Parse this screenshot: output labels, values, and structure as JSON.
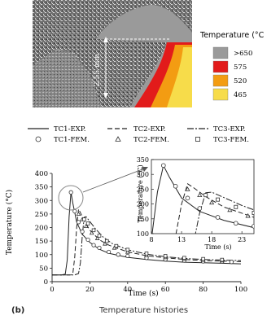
{
  "micrograph": {
    "dimension_label": "2.55 mm",
    "legend_title": "Temperature (°C",
    "legend_items": [
      {
        "label": ">650",
        "color": "#9a9a9a"
      },
      {
        "label": "575",
        "color": "#e21b1b"
      },
      {
        "label": "520",
        "color": "#f39c12"
      },
      {
        "label": "465",
        "color": "#f7dc4a"
      }
    ]
  },
  "chart_data": {
    "type": "line",
    "xlabel": "Time (s)",
    "ylabel": "Temperature (°C)",
    "xlim": [
      0,
      100
    ],
    "ylim": [
      0,
      400
    ],
    "xticks": [
      "0",
      "20",
      "40",
      "60",
      "80",
      "100"
    ],
    "yticks": [
      "0",
      "50",
      "100",
      "150",
      "200",
      "250",
      "300",
      "350",
      "400"
    ],
    "legend": [
      {
        "name": "TC1-EXP.",
        "style": "solid"
      },
      {
        "name": "TC2-EXP.",
        "style": "dashed"
      },
      {
        "name": "TC3-EXP.",
        "style": "dashdot"
      },
      {
        "name": "TC1-FEM.",
        "style": "circle"
      },
      {
        "name": "TC2-FEM.",
        "style": "triangle"
      },
      {
        "name": "TC3-FEM.",
        "style": "square"
      }
    ],
    "series": [
      {
        "name": "TC1-EXP.",
        "dash": "",
        "x": [
          0,
          5,
          7,
          8,
          9,
          10,
          11,
          13,
          16,
          20,
          25,
          30,
          40,
          50,
          60,
          70,
          80,
          90,
          100
        ],
        "y": [
          25,
          25,
          28,
          80,
          240,
          330,
          290,
          220,
          175,
          145,
          120,
          105,
          90,
          82,
          76,
          72,
          70,
          68,
          66
        ]
      },
      {
        "name": "TC2-EXP.",
        "dash": "6,3",
        "x": [
          0,
          10,
          11,
          12,
          13,
          14,
          15,
          17,
          20,
          25,
          30,
          40,
          50,
          60,
          70,
          80,
          90,
          100
        ],
        "y": [
          25,
          25,
          30,
          90,
          200,
          268,
          255,
          225,
          190,
          155,
          135,
          110,
          96,
          88,
          82,
          78,
          76,
          74
        ]
      },
      {
        "name": "TC3-EXP.",
        "dash": "8,2,2,2",
        "x": [
          0,
          12,
          14,
          15,
          16,
          17,
          18,
          20,
          23,
          27,
          32,
          40,
          50,
          60,
          70,
          80,
          90,
          100
        ],
        "y": [
          25,
          25,
          30,
          70,
          170,
          238,
          240,
          222,
          195,
          165,
          140,
          118,
          102,
          92,
          86,
          82,
          80,
          78
        ]
      }
    ],
    "markers": [
      {
        "name": "TC1-FEM.",
        "shape": "circle",
        "x": [
          10,
          12,
          14,
          16,
          19,
          22,
          25,
          30,
          35,
          40,
          50,
          60,
          70,
          80,
          90,
          95
        ],
        "y": [
          330,
          260,
          220,
          185,
          155,
          135,
          125,
          110,
          100,
          95,
          88,
          82,
          78,
          75,
          74,
          73
        ]
      },
      {
        "name": "TC2-FEM.",
        "shape": "triangle",
        "x": [
          14,
          16,
          18,
          21,
          24,
          28,
          33,
          40,
          50,
          60,
          70,
          80,
          90
        ],
        "y": [
          250,
          230,
          205,
          180,
          160,
          140,
          125,
          110,
          98,
          90,
          84,
          80,
          78
        ]
      },
      {
        "name": "TC3-FEM.",
        "shape": "square",
        "x": [
          17,
          19,
          22,
          25,
          29,
          34,
          40,
          50,
          60,
          70,
          80,
          90
        ],
        "y": [
          230,
          215,
          190,
          170,
          150,
          132,
          118,
          104,
          95,
          88,
          84,
          81
        ]
      }
    ],
    "inset": {
      "xlabel": "Time (s)",
      "ylabel": "Temperature (°C)",
      "xlim": [
        8,
        25
      ],
      "ylim": [
        100,
        350
      ],
      "xticks": [
        "8",
        "13",
        "18",
        "23"
      ],
      "yticks": [
        "100",
        "150",
        "200",
        "250",
        "300",
        "350"
      ]
    }
  },
  "caption": {
    "label": "(b)",
    "text": "Temperature histories"
  }
}
